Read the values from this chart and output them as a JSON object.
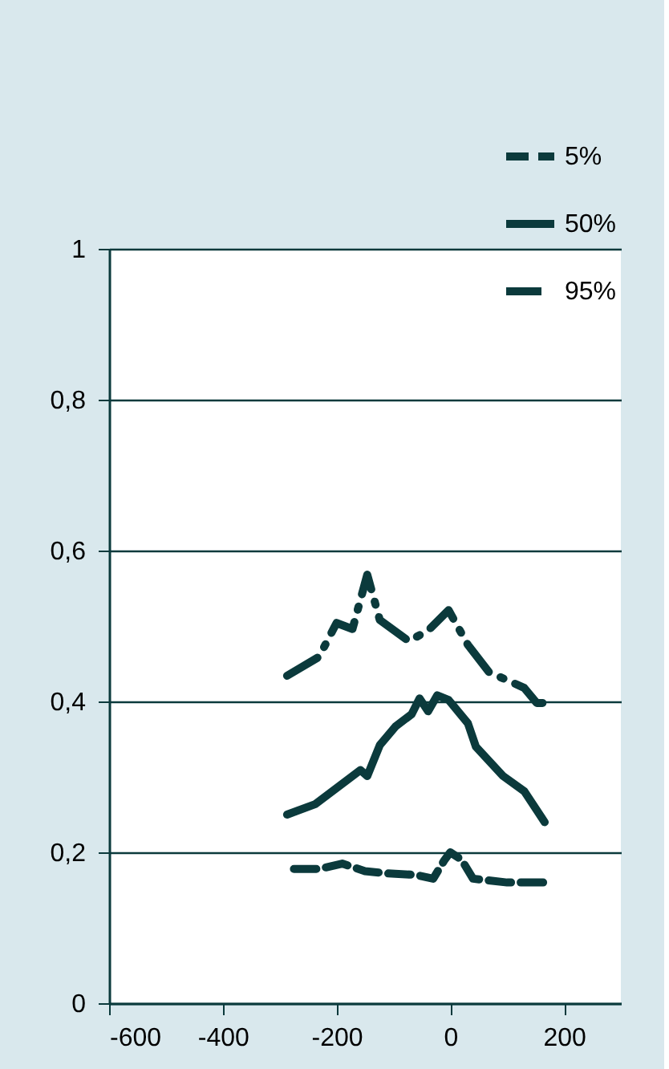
{
  "chart_data": {
    "type": "line",
    "xlim": [
      -600,
      300
    ],
    "xticks": [
      -600,
      -400,
      -200,
      0,
      200
    ],
    "ylim": [
      0,
      1
    ],
    "yticks": [
      0,
      {
        "value": 0.2,
        "label": "0,2"
      },
      {
        "value": 0.4,
        "label": "0,4"
      },
      {
        "value": 0.6,
        "label": "0,6"
      },
      {
        "value": 0.8,
        "label": "0,8"
      },
      1
    ],
    "grid": "y",
    "legend": "top right",
    "series": [
      {
        "name": "5%",
        "color": "#0b3a3c",
        "line_style": "dashed",
        "x": [
          -275,
          -230,
          -190,
          -150,
          -110,
          -60,
          -30,
          -10,
          0,
          20,
          40,
          100,
          170
        ],
        "values": [
          0.178,
          0.178,
          0.185,
          0.175,
          0.172,
          0.17,
          0.165,
          0.19,
          0.2,
          0.19,
          0.165,
          0.16,
          0.16
        ]
      },
      {
        "name": "50%",
        "color": "#0b3a3c",
        "line_style": "solid",
        "x": [
          -287,
          -237,
          -172,
          -158,
          -146,
          -124,
          -96,
          -68,
          -54,
          -39,
          -23,
          -3,
          31,
          45,
          93,
          130,
          166
        ],
        "values": [
          0.25,
          0.264,
          0.301,
          0.309,
          0.301,
          0.342,
          0.367,
          0.383,
          0.404,
          0.387,
          0.408,
          0.402,
          0.371,
          0.34,
          0.301,
          0.281,
          0.24
        ]
      },
      {
        "name": "95%",
        "color": "#0b3a3c",
        "line_style": "dashed",
        "x": [
          -287,
          -231,
          -200,
          -172,
          -146,
          -124,
          -73,
          -39,
          -3,
          31,
          68,
          130,
          152,
          166
        ],
        "values": [
          0.434,
          0.459,
          0.504,
          0.496,
          0.568,
          0.508,
          0.48,
          0.494,
          0.521,
          0.475,
          0.439,
          0.418,
          0.398,
          0.398
        ]
      }
    ]
  }
}
